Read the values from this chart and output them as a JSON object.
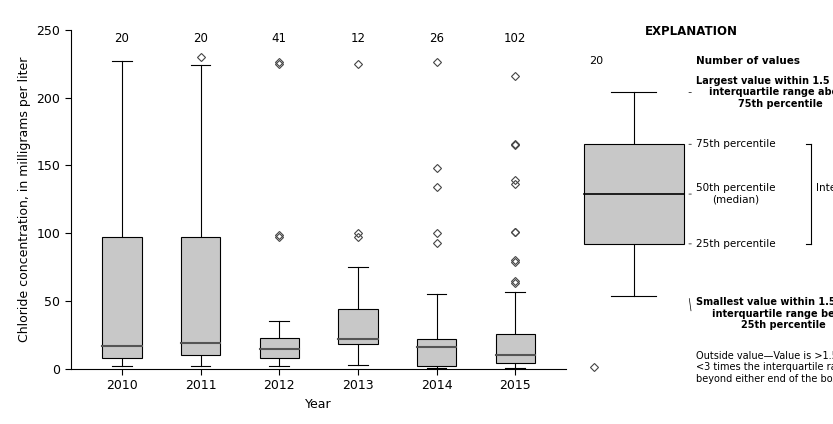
{
  "years": [
    2010,
    2011,
    2012,
    2013,
    2014,
    2015
  ],
  "n_values": [
    20,
    20,
    41,
    12,
    26,
    102
  ],
  "boxes": [
    {
      "q1": 8,
      "median": 17,
      "q3": 97,
      "whisker_low": 2,
      "whisker_high": 227,
      "fliers": []
    },
    {
      "q1": 10,
      "median": 19,
      "q3": 97,
      "whisker_low": 2,
      "whisker_high": 224,
      "fliers": [
        230
      ]
    },
    {
      "q1": 8,
      "median": 15,
      "q3": 23,
      "whisker_low": 2,
      "whisker_high": 35,
      "fliers": [
        97,
        99,
        225,
        226
      ]
    },
    {
      "q1": 18,
      "median": 22,
      "q3": 44,
      "whisker_low": 3,
      "whisker_high": 75,
      "fliers": [
        97,
        100,
        225
      ]
    },
    {
      "q1": 2,
      "median": 16,
      "q3": 22,
      "whisker_low": 0.5,
      "whisker_high": 55,
      "fliers": [
        93,
        100,
        134,
        148,
        226
      ]
    },
    {
      "q1": 4,
      "median": 10,
      "q3": 26,
      "whisker_low": 0.5,
      "whisker_high": 57,
      "fliers": [
        63,
        65,
        79,
        80,
        101,
        101,
        136,
        139,
        165,
        166,
        216
      ]
    }
  ],
  "ylabel": "Chloride concentration, in milligrams per liter",
  "xlabel": "Year",
  "ylim": [
    0,
    250
  ],
  "yticks": [
    0,
    50,
    100,
    150,
    200,
    250
  ],
  "box_color": "#c8c8c8",
  "box_edge_color": "#000000",
  "median_color": "#555555",
  "whisker_color": "#000000",
  "flier_marker": "D",
  "flier_color": "#444444",
  "flier_size": 4,
  "explanation_title": "EXPLANATION",
  "background_color": "#ffffff"
}
